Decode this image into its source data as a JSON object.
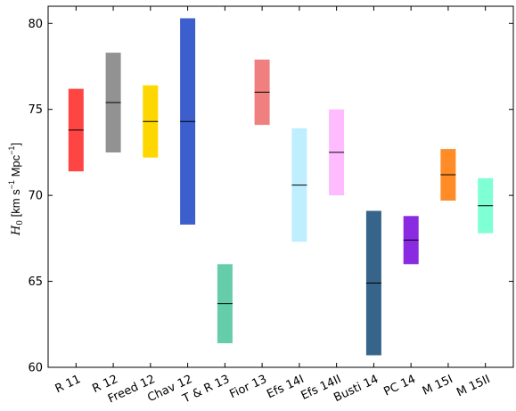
{
  "chart_data": {
    "type": "floating-bar",
    "ylabel": "H_0 [km s^-1 Mpc^-1]",
    "ylabel_parts": {
      "symbol": "H",
      "sub": "0",
      "units_a": " [km s",
      "sup_a": "−1",
      "units_b": " Mpc",
      "sup_b": "−1",
      "units_c": "]"
    },
    "ylim": [
      60,
      81
    ],
    "yticks": [
      60,
      65,
      70,
      75,
      80
    ],
    "ytick_labels": [
      "60",
      "65",
      "70",
      "75",
      "80"
    ],
    "grid": false,
    "categories": [
      "R 11",
      "R 12",
      "Freed 12",
      "Chav 12",
      "T & R 13",
      "Fior 13",
      "Efs 14I",
      "Efs 14II",
      "Busti 14",
      "PC 14",
      "M 15I",
      "M 15II"
    ],
    "series": [
      {
        "category": "R 11",
        "low": 71.4,
        "high": 76.2,
        "central": 73.8,
        "color": "#ff4444"
      },
      {
        "category": "R 12",
        "low": 72.5,
        "high": 78.3,
        "central": 75.4,
        "color": "#929292"
      },
      {
        "category": "Freed 12",
        "low": 72.2,
        "high": 76.4,
        "central": 74.3,
        "color": "#ffd700"
      },
      {
        "category": "Chav 12",
        "low": 68.3,
        "high": 80.3,
        "central": 74.3,
        "color": "#3c5fcd"
      },
      {
        "category": "T & R 13",
        "low": 61.4,
        "high": 66.0,
        "central": 63.7,
        "color": "#66cdaa"
      },
      {
        "category": "Fior 13",
        "low": 74.1,
        "high": 77.9,
        "central": 76.0,
        "color": "#f08080"
      },
      {
        "category": "Efs 14I",
        "low": 67.3,
        "high": 73.9,
        "central": 70.6,
        "color": "#bfefff"
      },
      {
        "category": "Efs 14II",
        "low": 70.0,
        "high": 75.0,
        "central": 72.5,
        "color": "#ffbbff"
      },
      {
        "category": "Busti 14",
        "low": 60.7,
        "high": 69.1,
        "central": 64.9,
        "color": "#36648b"
      },
      {
        "category": "PC 14",
        "low": 66.0,
        "high": 68.8,
        "central": 67.4,
        "color": "#8a2be2"
      },
      {
        "category": "M 15I",
        "low": 69.7,
        "high": 72.7,
        "central": 71.2,
        "color": "#ff8c26"
      },
      {
        "category": "M 15II",
        "low": 67.8,
        "high": 71.0,
        "central": 69.4,
        "color": "#7fffd4"
      }
    ]
  }
}
